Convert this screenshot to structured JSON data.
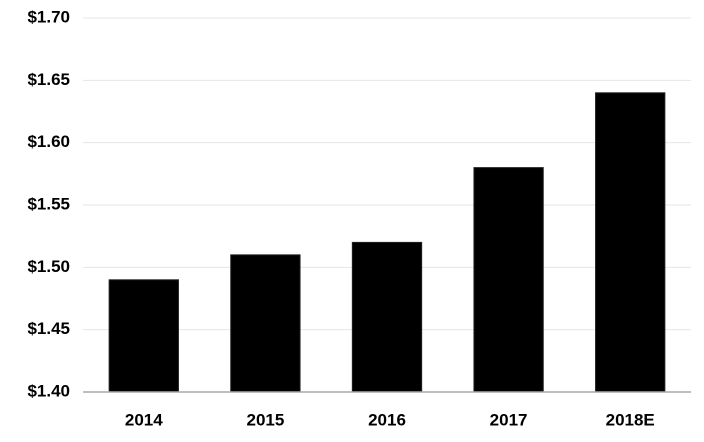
{
  "chart_data": {
    "type": "bar",
    "categories": [
      "2014",
      "2015",
      "2016",
      "2017",
      "2018E"
    ],
    "values": [
      1.49,
      1.51,
      1.52,
      1.58,
      1.64
    ],
    "color": "#000000",
    "ylim": [
      1.4,
      1.7
    ],
    "yticks": [
      {
        "value": 1.4,
        "label": "$1.40"
      },
      {
        "value": 1.45,
        "label": "$1.45"
      },
      {
        "value": 1.5,
        "label": "$1.50"
      },
      {
        "value": 1.55,
        "label": "$1.55"
      },
      {
        "value": 1.6,
        "label": "$1.60"
      },
      {
        "value": 1.65,
        "label": "$1.65"
      },
      {
        "value": 1.7,
        "label": "$1.70"
      }
    ],
    "grid": true
  }
}
